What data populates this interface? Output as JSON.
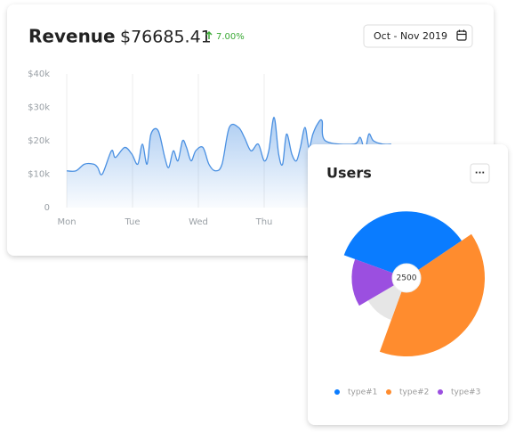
{
  "chart_data": [
    {
      "type": "area",
      "title": "Revenue",
      "total": "$76685.41",
      "change": "7.00%",
      "date_range": "Oct - Nov 2019",
      "color": "#4a90e2",
      "x": [
        0,
        0.14,
        0.27,
        0.41,
        0.47,
        0.54,
        0.68,
        0.74,
        0.88,
        0.99,
        1.08,
        1.15,
        1.22,
        1.28,
        1.39,
        1.49,
        1.55,
        1.62,
        1.69,
        1.76,
        1.82,
        1.89,
        1.96,
        2.07,
        2.16,
        2.26,
        2.36,
        2.47,
        2.61,
        2.7,
        2.8,
        2.91,
        3.0,
        3.07,
        3.15,
        3.22,
        3.28,
        3.34,
        3.42,
        3.49,
        3.55,
        3.62,
        3.68,
        3.74,
        3.81,
        3.88,
        3.93,
        4.36,
        4.46,
        4.53,
        4.59,
        4.66,
        4.8,
        4.93
      ],
      "values": [
        11000,
        11000,
        13000,
        13000,
        12000,
        10000,
        17000,
        15000,
        18000,
        16000,
        13000,
        19000,
        13000,
        22000,
        23000,
        15000,
        12000,
        17000,
        14000,
        20000,
        18000,
        14000,
        17000,
        18000,
        13000,
        11000,
        13000,
        24000,
        24000,
        21000,
        17000,
        19000,
        14000,
        17000,
        27000,
        16000,
        13000,
        22000,
        16000,
        14000,
        18000,
        24000,
        18000,
        22000,
        25000,
        26000,
        20000,
        19000,
        21000,
        17000,
        22000,
        20000,
        19000,
        19000
      ],
      "xlim": [
        0,
        6
      ],
      "xticks": [
        {
          "value": 0,
          "label": "Mon"
        },
        {
          "value": 1,
          "label": "Tue"
        },
        {
          "value": 2,
          "label": "Wed"
        },
        {
          "value": 3,
          "label": "Thu"
        }
      ],
      "ylim": [
        0,
        40000
      ],
      "yticks": [
        0,
        {
          "value": 10000,
          "label": "$10k"
        },
        {
          "value": 20000,
          "label": "$20k"
        },
        {
          "value": 30000,
          "label": "$30k"
        },
        {
          "value": 40000,
          "label": "$40k"
        }
      ],
      "grid": true
    },
    {
      "type": "pie",
      "title": "Users",
      "menu": "···",
      "center_value": 2500,
      "categories": [
        "type#1",
        "type#2",
        null,
        "type#3"
      ],
      "values": [
        35,
        40,
        11,
        14
      ],
      "radii": [
        85,
        100,
        57,
        70
      ],
      "colors": [
        "#0a7cff",
        "#ff8c2e",
        "#e6e6e6",
        "#9b4fe0"
      ]
    }
  ]
}
